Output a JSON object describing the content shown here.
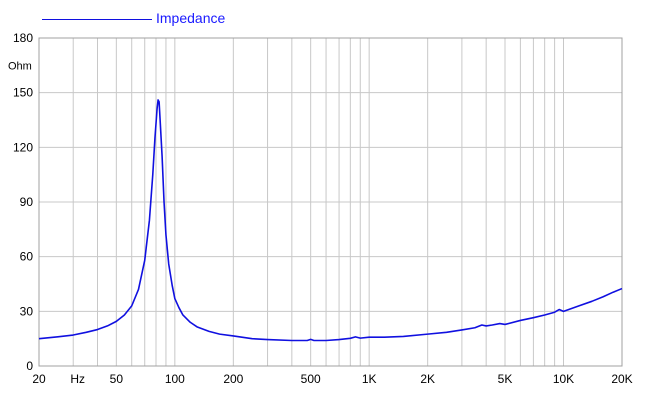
{
  "chart_data": {
    "type": "line",
    "title": "",
    "legend": {
      "position": "top-left",
      "entries": [
        "Impedance"
      ]
    },
    "xscale": "log",
    "xlim": [
      20,
      20000
    ],
    "ylim": [
      0,
      180
    ],
    "ylabel": "Ohm",
    "xunit_label": "Hz",
    "grid": true,
    "x_ticks": [
      {
        "value": 20,
        "label": "20"
      },
      {
        "value": 50,
        "label": "50"
      },
      {
        "value": 100,
        "label": "100"
      },
      {
        "value": 200,
        "label": "200"
      },
      {
        "value": 500,
        "label": "500"
      },
      {
        "value": 1000,
        "label": "1K"
      },
      {
        "value": 2000,
        "label": "2K"
      },
      {
        "value": 5000,
        "label": "5K"
      },
      {
        "value": 10000,
        "label": "10K"
      },
      {
        "value": 20000,
        "label": "20K"
      }
    ],
    "y_ticks": [
      0,
      30,
      60,
      90,
      120,
      150,
      180
    ],
    "series": [
      {
        "name": "Impedance",
        "color": "#1010e0",
        "points": [
          [
            20,
            15
          ],
          [
            25,
            16
          ],
          [
            30,
            17
          ],
          [
            35,
            18.5
          ],
          [
            40,
            20
          ],
          [
            45,
            22
          ],
          [
            50,
            24.5
          ],
          [
            55,
            28
          ],
          [
            60,
            33
          ],
          [
            65,
            42
          ],
          [
            70,
            58
          ],
          [
            74,
            80
          ],
          [
            77,
            105
          ],
          [
            79,
            125
          ],
          [
            81,
            141
          ],
          [
            82,
            146
          ],
          [
            83,
            145
          ],
          [
            84,
            135
          ],
          [
            86,
            115
          ],
          [
            88,
            90
          ],
          [
            90,
            72
          ],
          [
            93,
            56
          ],
          [
            97,
            44
          ],
          [
            100,
            37
          ],
          [
            105,
            32
          ],
          [
            110,
            28
          ],
          [
            120,
            24
          ],
          [
            130,
            21.5
          ],
          [
            150,
            19
          ],
          [
            170,
            17.5
          ],
          [
            200,
            16.5
          ],
          [
            250,
            15
          ],
          [
            300,
            14.5
          ],
          [
            400,
            14
          ],
          [
            480,
            14
          ],
          [
            500,
            14.6
          ],
          [
            520,
            14
          ],
          [
            600,
            14
          ],
          [
            700,
            14.5
          ],
          [
            800,
            15.2
          ],
          [
            850,
            16
          ],
          [
            900,
            15.3
          ],
          [
            1000,
            15.8
          ],
          [
            1200,
            15.8
          ],
          [
            1500,
            16.2
          ],
          [
            2000,
            17.5
          ],
          [
            2500,
            18.5
          ],
          [
            3000,
            19.8
          ],
          [
            3500,
            21
          ],
          [
            3800,
            22.5
          ],
          [
            4000,
            22
          ],
          [
            4300,
            22.5
          ],
          [
            4700,
            23.3
          ],
          [
            5000,
            22.8
          ],
          [
            6000,
            25
          ],
          [
            7000,
            26.5
          ],
          [
            8000,
            28
          ],
          [
            9000,
            29.5
          ],
          [
            9500,
            31
          ],
          [
            10000,
            30
          ],
          [
            12000,
            33
          ],
          [
            14000,
            35.5
          ],
          [
            16000,
            38
          ],
          [
            18000,
            40.5
          ],
          [
            20000,
            42.5
          ]
        ]
      }
    ]
  }
}
